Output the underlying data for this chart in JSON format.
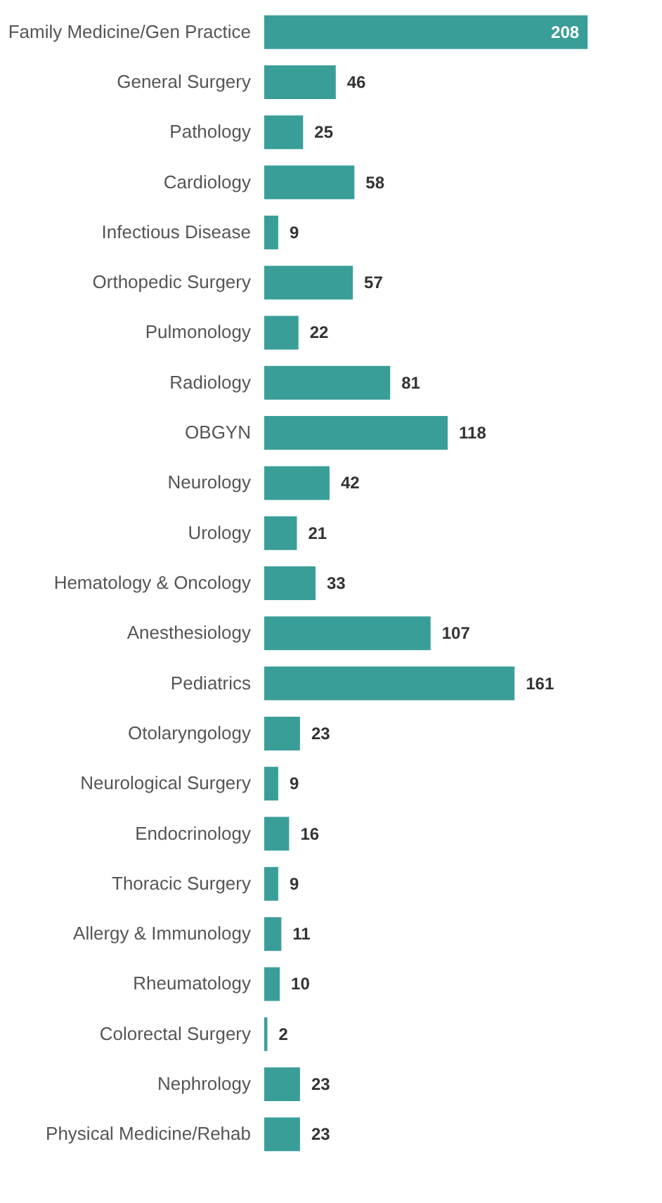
{
  "chart_data": {
    "type": "bar",
    "orientation": "horizontal",
    "data_labels": true,
    "categories": [
      "Family Medicine/Gen Practice",
      "General Surgery",
      "Pathology",
      "Cardiology",
      "Infectious Disease",
      "Orthopedic Surgery",
      "Pulmonology",
      "Radiology",
      "OBGYN",
      "Neurology",
      "Urology",
      "Hematology & Oncology",
      "Anesthesiology",
      "Pediatrics",
      "Otolaryngology",
      "Neurological Surgery",
      "Endocrinology",
      "Thoracic Surgery",
      "Allergy & Immunology",
      "Rheumatology",
      "Colorectal Surgery",
      "Nephrology",
      "Physical Medicine/Rehab"
    ],
    "values": [
      208,
      46,
      25,
      58,
      9,
      57,
      22,
      81,
      118,
      42,
      21,
      33,
      107,
      161,
      23,
      9,
      16,
      9,
      11,
      10,
      2,
      23,
      23
    ],
    "color": "#3a9e98"
  }
}
